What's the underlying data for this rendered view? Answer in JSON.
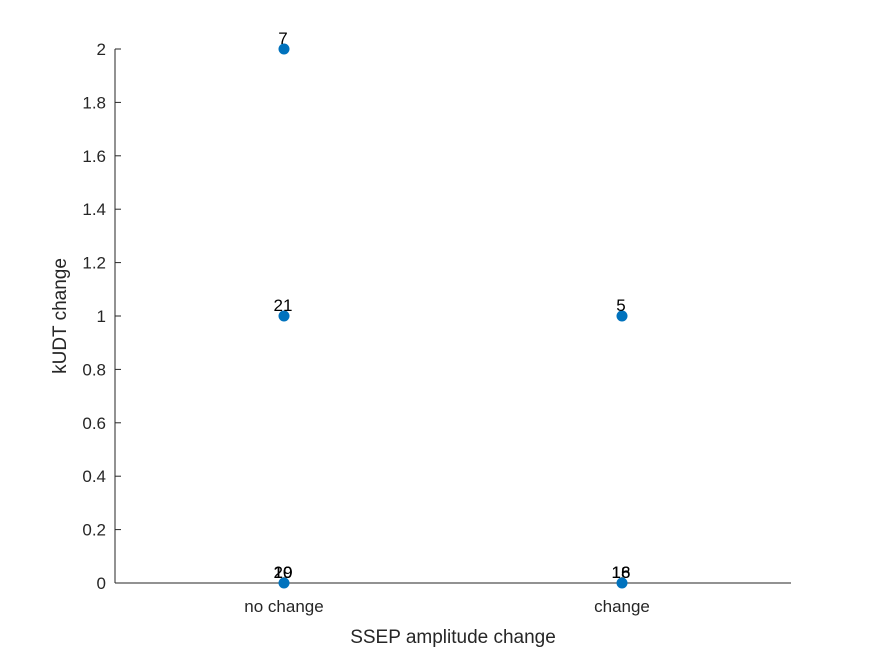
{
  "chart_data": {
    "type": "scatter",
    "xlabel": "SSEP amplitude change",
    "ylabel": "kUDT change",
    "categories": [
      "no change",
      "change"
    ],
    "ylim": [
      0,
      2
    ],
    "yticks": [
      "0",
      "0.2",
      "0.4",
      "0.6",
      "0.8",
      "1",
      "1.2",
      "1.4",
      "1.6",
      "1.8",
      "2"
    ],
    "grid": false,
    "marker_color": "#0072BD",
    "points": [
      {
        "x": "no change",
        "y": 2,
        "labels": [
          "7"
        ]
      },
      {
        "x": "no change",
        "y": 1,
        "labels": [
          "21"
        ]
      },
      {
        "x": "no change",
        "y": 0,
        "labels": [
          "20",
          "19",
          "10"
        ]
      },
      {
        "x": "change",
        "y": 1,
        "labels": [
          "5"
        ]
      },
      {
        "x": "change",
        "y": 0,
        "labels": [
          "16",
          "18"
        ]
      }
    ]
  }
}
